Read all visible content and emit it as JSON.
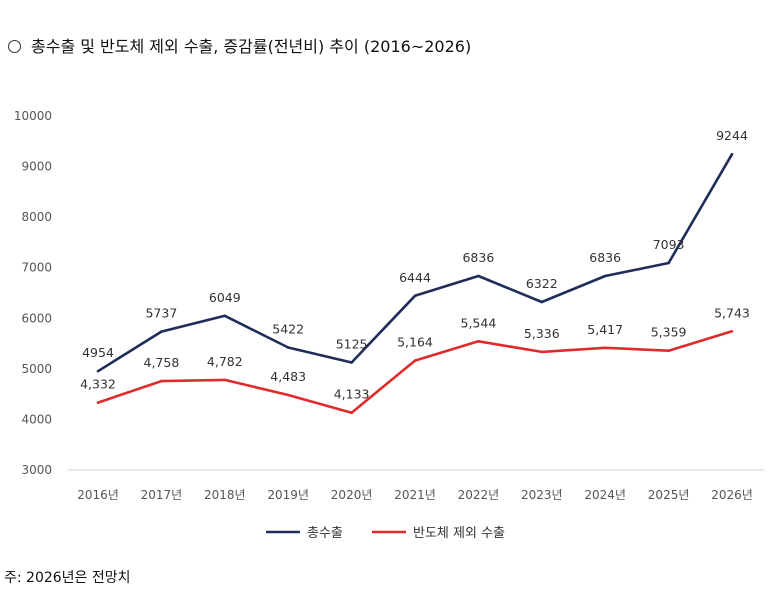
{
  "title": "총수출 및 반도체 제외 수출, 증감률(전년비) 추이 (2016~2026)",
  "note": "주: 2026년은 전망치",
  "chart_data": {
    "type": "line",
    "categories": [
      "2016년",
      "2017년",
      "2018년",
      "2019년",
      "2020년",
      "2021년",
      "2022년",
      "2023년",
      "2024년",
      "2025년",
      "2026년"
    ],
    "series": [
      {
        "name": "총수출",
        "color": "#1f2d5a",
        "values": [
          4954,
          5737,
          6049,
          5422,
          5125,
          6444,
          6836,
          6322,
          6836,
          7093,
          9244
        ],
        "labels": [
          "4954",
          "5737",
          "6049",
          "5422",
          "5125",
          "6444",
          "6836",
          "6322",
          "6836",
          "7093",
          "9244"
        ]
      },
      {
        "name": "반도체 제외 수출",
        "color": "#e02b2b",
        "values": [
          4332,
          4758,
          4782,
          4483,
          4133,
          5164,
          5544,
          5336,
          5417,
          5359,
          5743
        ],
        "labels": [
          "4,332",
          "4,758",
          "4,782",
          "4,483",
          "4,133",
          "5,164",
          "5,544",
          "5,336",
          "5,417",
          "5,359",
          "5,743"
        ]
      }
    ],
    "ylim": [
      3000,
      10000
    ],
    "yticks": [
      "3000",
      "4000",
      "5000",
      "6000",
      "7000",
      "8000",
      "9000",
      "10000"
    ],
    "grid": false,
    "legend": "bottom"
  }
}
